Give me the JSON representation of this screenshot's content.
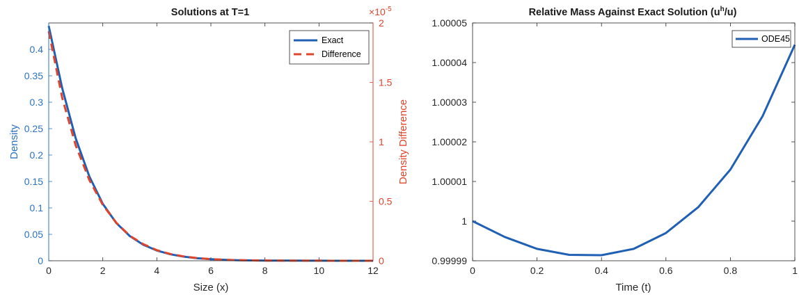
{
  "colors": {
    "blue": "#1f5fb4",
    "red": "#e0442a",
    "axis_left": "#2b72c4",
    "axis_right": "#e0442a",
    "axis_black": "#262626"
  },
  "chart_data": [
    {
      "type": "line",
      "title": "Solutions at T=1",
      "xlabel": "Size (x)",
      "ylabel": "Density",
      "ylabel_right": "Density Difference",
      "right_exponent_base": "×10",
      "right_exponent_power": "-5",
      "xlim": [
        0,
        12
      ],
      "ylim": [
        0,
        0.45
      ],
      "ylim_right": [
        0,
        2
      ],
      "x_ticks": [
        "0",
        "2",
        "4",
        "6",
        "8",
        "10",
        "12"
      ],
      "y_ticks": [
        "0",
        "0.05",
        "0.1",
        "0.15",
        "0.2",
        "0.25",
        "0.3",
        "0.35",
        "0.4"
      ],
      "y_ticks_right": [
        "0",
        "0.5",
        "1",
        "1.5",
        "2"
      ],
      "legend_position": "top-right",
      "series": [
        {
          "name": "Exact",
          "style": "solid",
          "axis": "left",
          "x": [
            0,
            0.5,
            1,
            1.5,
            2,
            2.5,
            3,
            3.5,
            4,
            4.5,
            5,
            5.5,
            6,
            6.5,
            7,
            7.5,
            8,
            8.5,
            9,
            9.5,
            10,
            10.5,
            11,
            11.5,
            12
          ],
          "y": [
            0.4444,
            0.3264,
            0.2316,
            0.1597,
            0.1077,
            0.0714,
            0.0467,
            0.0302,
            0.0193,
            0.0122,
            0.0077,
            0.0048,
            0.003,
            0.0018,
            0.0011,
            0.0007,
            0.0004,
            0.0003,
            0.0002,
            0.0001,
            0.0001,
            0.0,
            0.0,
            0.0,
            0.0
          ]
        },
        {
          "name": "Difference",
          "style": "dashed",
          "axis": "right",
          "x": [
            0,
            0.5,
            1,
            1.5,
            2,
            2.5,
            3,
            3.5,
            4,
            4.5,
            5,
            5.5,
            6,
            6.5,
            7,
            7.5,
            8,
            8.5,
            9,
            9.5,
            10,
            10.5,
            11,
            11.5,
            12
          ],
          "y": [
            1.93,
            1.37,
            0.97,
            0.68,
            0.47,
            0.32,
            0.21,
            0.14,
            0.089,
            0.057,
            0.036,
            0.022,
            0.014,
            0.008,
            0.005,
            0.003,
            0.002,
            0.001,
            0.0007,
            0.0004,
            0.0003,
            0.0002,
            0.0001,
            0.0,
            0.0
          ]
        }
      ]
    },
    {
      "type": "line",
      "title": "Relative Mass Against Exact Solution (u",
      "title_sup": "h",
      "title_end": "/u)",
      "xlabel": "Time (t)",
      "ylabel": "",
      "xlim": [
        0,
        1
      ],
      "ylim": [
        0.99999,
        1.00005
      ],
      "x_ticks": [
        "0",
        "0.2",
        "0.4",
        "0.6",
        "0.8",
        "1"
      ],
      "y_ticks": [
        "0.99999",
        "1",
        "1.00001",
        "1.00002",
        "1.00003",
        "1.00004",
        "1.00005"
      ],
      "legend_position": "top-right",
      "series": [
        {
          "name": "ODE45",
          "style": "solid",
          "x": [
            0,
            0.1,
            0.2,
            0.3,
            0.4,
            0.5,
            0.6,
            0.7,
            0.8,
            0.9,
            1.0
          ],
          "y": [
            1.0,
            0.999996,
            0.999993,
            0.9999915,
            0.9999914,
            0.999993,
            0.999997,
            1.0000035,
            1.000013,
            1.0000265,
            1.0000445
          ]
        }
      ]
    }
  ]
}
